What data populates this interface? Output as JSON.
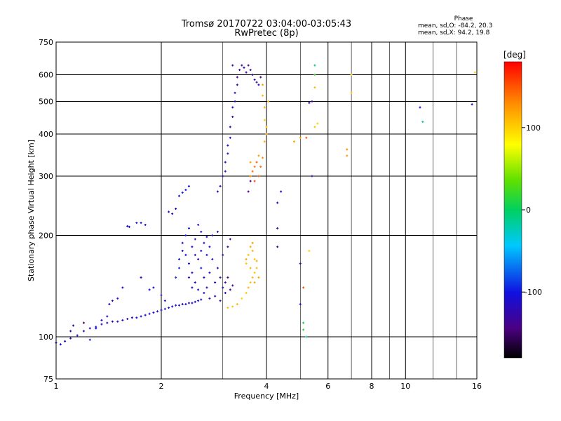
{
  "header": {
    "title_line1": "Tromsø 20170722 03:04:00-03:05:43",
    "title_line2": "RwPretec (8p)"
  },
  "phase_box": {
    "title": "Phase",
    "line_o": "mean, sd,O: -84.2, 20.3",
    "line_x": "mean, sd,X:  94.2, 19.8"
  },
  "colorbar": {
    "unit": "[deg]",
    "ticks": [
      "100",
      "0",
      "-100"
    ],
    "tick_values": [
      100,
      0,
      -100
    ],
    "range": [
      -180,
      180
    ]
  },
  "chart_data": {
    "type": "scatter",
    "xlabel": "Frequency [MHz]",
    "ylabel": "Stationary phase Virtual Height [km]",
    "xscale": "log",
    "yscale": "log",
    "xlim": [
      1,
      16
    ],
    "ylim": [
      75,
      750
    ],
    "xticks": [
      1,
      2,
      4,
      6,
      8,
      10,
      16
    ],
    "xtick_labels": [
      "1",
      "2",
      "4",
      "6",
      "8",
      "10",
      "16"
    ],
    "xminor": [
      3,
      5,
      7,
      9,
      12,
      14
    ],
    "yticks": [
      75,
      100,
      200,
      300,
      400,
      500,
      600,
      750
    ],
    "ytick_labels": [
      "75",
      "100",
      "200",
      "300",
      "400",
      "500",
      "600",
      "750"
    ],
    "grid": true,
    "series": [
      {
        "values": [
          [
            1.0,
            96,
            -110
          ],
          [
            1.03,
            95,
            -100
          ],
          [
            1.06,
            97,
            -110
          ],
          [
            1.1,
            99,
            -115
          ],
          [
            1.15,
            101,
            -112
          ],
          [
            1.2,
            104,
            -118
          ],
          [
            1.25,
            106,
            -120
          ],
          [
            1.3,
            107,
            -115
          ],
          [
            1.35,
            109,
            -120
          ],
          [
            1.4,
            110,
            -118
          ],
          [
            1.45,
            111,
            -120
          ],
          [
            1.5,
            111,
            -115
          ],
          [
            1.55,
            112,
            -118
          ],
          [
            1.6,
            113,
            -115
          ],
          [
            1.65,
            114,
            -118
          ],
          [
            1.7,
            114,
            -110
          ],
          [
            1.75,
            115,
            -112
          ],
          [
            1.8,
            116,
            -110
          ],
          [
            1.85,
            117,
            -112
          ],
          [
            1.9,
            118,
            -108
          ],
          [
            1.95,
            119,
            -110
          ],
          [
            2.0,
            120,
            -110
          ],
          [
            2.05,
            121,
            -112
          ],
          [
            2.1,
            122,
            -110
          ],
          [
            2.15,
            123,
            -108
          ],
          [
            2.2,
            124,
            -110
          ],
          [
            2.25,
            124,
            -108
          ],
          [
            2.3,
            125,
            -110
          ],
          [
            2.35,
            125,
            -112
          ],
          [
            2.4,
            126,
            -110
          ],
          [
            2.45,
            126,
            -108
          ],
          [
            2.5,
            127,
            -110
          ],
          [
            2.55,
            128,
            -112
          ],
          [
            2.6,
            129,
            -110
          ]
        ]
      },
      {
        "values": [
          [
            1.35,
            112,
            -110
          ],
          [
            1.4,
            115,
            -110
          ],
          [
            1.42,
            125,
            -112
          ],
          [
            1.45,
            128,
            -110
          ],
          [
            1.5,
            130,
            -108
          ],
          [
            1.55,
            140,
            -108
          ],
          [
            1.6,
            213,
            -105
          ],
          [
            1.62,
            212,
            -108
          ],
          [
            1.7,
            218,
            -110
          ],
          [
            1.75,
            218,
            -100
          ],
          [
            1.8,
            215,
            -105
          ],
          [
            1.75,
            150,
            -105
          ],
          [
            1.85,
            138,
            -108
          ],
          [
            1.9,
            140,
            -110
          ],
          [
            2.0,
            133,
            -110
          ],
          [
            2.05,
            128,
            -108
          ],
          [
            2.1,
            235,
            -115
          ],
          [
            2.15,
            232,
            -112
          ],
          [
            2.2,
            240,
            -110
          ],
          [
            2.25,
            262,
            -100
          ],
          [
            2.3,
            268,
            -95
          ],
          [
            2.35,
            273,
            -100
          ],
          [
            2.4,
            280,
            -100
          ],
          [
            1.12,
            108,
            -130
          ],
          [
            1.2,
            110,
            -150
          ],
          [
            1.3,
            106,
            -100
          ],
          [
            1.1,
            104,
            -120
          ],
          [
            1.25,
            98,
            -95
          ]
        ]
      },
      {
        "values": [
          [
            2.2,
            150,
            -90
          ],
          [
            2.25,
            160,
            -95
          ],
          [
            2.25,
            170,
            -100
          ],
          [
            2.3,
            180,
            -105
          ],
          [
            2.3,
            190,
            -110
          ],
          [
            2.35,
            175,
            -100
          ],
          [
            2.35,
            200,
            -95
          ],
          [
            2.4,
            165,
            -100
          ],
          [
            2.4,
            210,
            -95
          ],
          [
            2.45,
            155,
            -110
          ],
          [
            2.45,
            185,
            -100
          ],
          [
            2.5,
            195,
            -115
          ],
          [
            2.5,
            145,
            -110
          ],
          [
            2.55,
            170,
            -120
          ],
          [
            2.55,
            215,
            -105
          ],
          [
            2.6,
            160,
            -100
          ],
          [
            2.6,
            180,
            -110
          ],
          [
            2.65,
            190,
            -115
          ],
          [
            2.65,
            150,
            -118
          ],
          [
            2.7,
            175,
            -105
          ],
          [
            2.7,
            140,
            -115
          ],
          [
            2.75,
            185,
            -108
          ],
          [
            2.75,
            155,
            -112
          ],
          [
            2.8,
            170,
            -110
          ],
          [
            2.85,
            145,
            -118
          ],
          [
            2.9,
            160,
            -115
          ],
          [
            2.95,
            150,
            -120
          ],
          [
            3.0,
            140,
            -125
          ],
          [
            3.05,
            145,
            -130
          ],
          [
            3.1,
            150,
            -140
          ],
          [
            3.0,
            175,
            -120
          ],
          [
            3.1,
            185,
            -130
          ],
          [
            3.15,
            195,
            -140
          ],
          [
            2.9,
            205,
            -125
          ],
          [
            2.8,
            200,
            -110
          ],
          [
            2.7,
            198,
            -115
          ],
          [
            2.6,
            205,
            -112
          ],
          [
            2.5,
            175,
            -118
          ],
          [
            2.4,
            150,
            -105
          ],
          [
            2.45,
            140,
            -110
          ],
          [
            2.55,
            138,
            -112
          ],
          [
            2.65,
            135,
            -115
          ],
          [
            2.75,
            130,
            -118
          ],
          [
            2.85,
            132,
            -120
          ],
          [
            2.95,
            128,
            -122
          ],
          [
            3.05,
            135,
            -128
          ],
          [
            3.15,
            138,
            -135
          ],
          [
            3.2,
            142,
            -145
          ]
        ]
      },
      {
        "values": [
          [
            3.0,
            300,
            -115
          ],
          [
            3.05,
            310,
            -118
          ],
          [
            3.05,
            330,
            -120
          ],
          [
            3.1,
            350,
            -120
          ],
          [
            3.1,
            370,
            -122
          ],
          [
            3.15,
            390,
            -118
          ],
          [
            3.15,
            420,
            -120
          ],
          [
            3.2,
            450,
            -118
          ],
          [
            3.2,
            480,
            -122
          ],
          [
            3.25,
            500,
            -120
          ],
          [
            3.25,
            530,
            -125
          ],
          [
            3.3,
            560,
            -130
          ],
          [
            3.3,
            590,
            -135
          ],
          [
            3.35,
            620,
            -140
          ],
          [
            3.4,
            640,
            -130
          ],
          [
            3.45,
            630,
            -125
          ],
          [
            3.5,
            610,
            -135
          ],
          [
            3.55,
            640,
            -140
          ],
          [
            3.6,
            620,
            -130
          ],
          [
            3.65,
            600,
            -125
          ],
          [
            3.7,
            580,
            -120
          ],
          [
            3.75,
            570,
            -128
          ],
          [
            3.8,
            560,
            -130
          ],
          [
            3.2,
            640,
            -130
          ],
          [
            2.95,
            280,
            -110
          ],
          [
            2.9,
            270,
            -115
          ],
          [
            3.55,
            270,
            -140
          ],
          [
            3.6,
            290,
            -145
          ],
          [
            3.85,
            590,
            -135
          ]
        ]
      },
      {
        "values": [
          [
            3.1,
            122,
            110
          ],
          [
            3.2,
            123,
            105
          ],
          [
            3.3,
            125,
            110
          ],
          [
            3.4,
            130,
            100
          ],
          [
            3.5,
            135,
            105
          ],
          [
            3.55,
            140,
            110
          ],
          [
            3.6,
            145,
            108
          ],
          [
            3.65,
            150,
            110
          ],
          [
            3.7,
            155,
            105
          ],
          [
            3.75,
            160,
            110
          ],
          [
            3.7,
            170,
            108
          ],
          [
            3.65,
            180,
            112
          ],
          [
            3.6,
            185,
            115
          ],
          [
            3.55,
            175,
            110
          ],
          [
            3.5,
            165,
            105
          ],
          [
            3.6,
            160,
            115
          ],
          [
            3.7,
            145,
            120
          ],
          [
            3.8,
            150,
            118
          ],
          [
            3.75,
            168,
            115
          ],
          [
            3.65,
            190,
            125
          ],
          [
            3.5,
            170,
            120
          ]
        ]
      },
      {
        "values": [
          [
            3.6,
            300,
            130
          ],
          [
            3.65,
            310,
            140
          ],
          [
            3.7,
            320,
            135
          ],
          [
            3.75,
            330,
            145
          ],
          [
            3.8,
            300,
            150
          ],
          [
            3.85,
            320,
            140
          ],
          [
            3.7,
            290,
            155
          ],
          [
            3.9,
            340,
            130
          ],
          [
            3.6,
            330,
            120
          ],
          [
            3.8,
            345,
            125
          ],
          [
            3.9,
            560,
            120
          ],
          [
            3.9,
            520,
            110
          ],
          [
            3.95,
            480,
            115
          ],
          [
            3.95,
            440,
            105
          ],
          [
            4.0,
            420,
            110
          ],
          [
            4.0,
            400,
            120
          ],
          [
            3.95,
            380,
            115
          ],
          [
            4.05,
            500,
            112
          ]
        ]
      },
      {
        "values": [
          [
            4.3,
            250,
            -120
          ],
          [
            4.3,
            210,
            -125
          ],
          [
            4.3,
            185,
            -128
          ],
          [
            4.4,
            270,
            -110
          ],
          [
            5.0,
            165,
            -130
          ],
          [
            5.0,
            125,
            -120
          ],
          [
            5.1,
            140,
            150
          ],
          [
            4.8,
            380,
            120
          ],
          [
            5.0,
            390,
            130
          ],
          [
            5.2,
            390,
            150
          ],
          [
            5.3,
            495,
            -125
          ],
          [
            5.4,
            500,
            -135
          ],
          [
            5.5,
            640,
            -10
          ],
          [
            5.5,
            600,
            20
          ],
          [
            5.5,
            550,
            110
          ],
          [
            5.5,
            420,
            105
          ],
          [
            5.6,
            430,
            100
          ],
          [
            5.4,
            300,
            -120
          ],
          [
            5.3,
            180,
            100
          ],
          [
            5.1,
            110,
            10
          ],
          [
            5.1,
            105,
            20
          ],
          [
            5.2,
            100,
            -20
          ]
        ]
      },
      {
        "values": [
          [
            6.8,
            360,
            130
          ],
          [
            6.8,
            345,
            125
          ],
          [
            7.0,
            530,
            110
          ],
          [
            7.0,
            600,
            100
          ],
          [
            11.0,
            480,
            -100
          ],
          [
            11.2,
            435,
            -20
          ],
          [
            15.5,
            490,
            -120
          ],
          [
            15.8,
            610,
            100
          ]
        ]
      }
    ]
  }
}
